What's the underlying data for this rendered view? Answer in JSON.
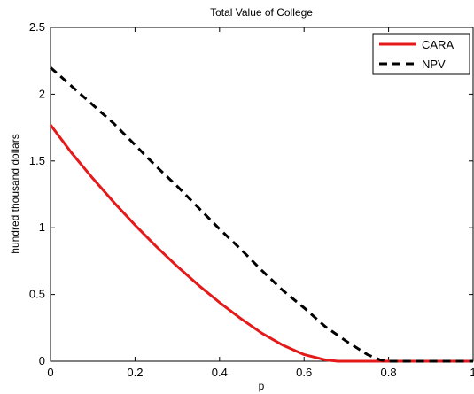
{
  "chart_data": {
    "type": "line",
    "title": "Total Value of College",
    "xlabel": "p",
    "ylabel": "hundred thousand dollars",
    "xlim": [
      0,
      1
    ],
    "ylim": [
      0,
      2.5
    ],
    "x_ticks": [
      "0",
      "0.2",
      "0.4",
      "0.6",
      "0.8",
      "1"
    ],
    "y_ticks": [
      "0",
      "0.5",
      "1",
      "1.5",
      "2",
      "2.5"
    ],
    "grid": false,
    "legend_position": "top-right",
    "series": [
      {
        "name": "CARA",
        "color": "#e41a1a",
        "line_style": "solid",
        "x": [
          0,
          0.05,
          0.1,
          0.15,
          0.2,
          0.25,
          0.3,
          0.35,
          0.4,
          0.45,
          0.5,
          0.55,
          0.6,
          0.65,
          0.68,
          0.7,
          0.75,
          0.8,
          0.85,
          0.9,
          0.95,
          1.0
        ],
        "y": [
          1.77,
          1.56,
          1.37,
          1.19,
          1.02,
          0.86,
          0.71,
          0.57,
          0.44,
          0.32,
          0.21,
          0.12,
          0.05,
          0.01,
          0.0,
          0.0,
          0.0,
          0.0,
          0.0,
          0.0,
          0.0,
          0.0
        ]
      },
      {
        "name": "NPV",
        "color": "#000000",
        "line_style": "dashed",
        "x": [
          0,
          0.05,
          0.1,
          0.15,
          0.2,
          0.25,
          0.3,
          0.35,
          0.4,
          0.45,
          0.5,
          0.55,
          0.6,
          0.65,
          0.7,
          0.75,
          0.78,
          0.8,
          0.85,
          0.9,
          0.95,
          1.0
        ],
        "y": [
          2.2,
          2.06,
          1.92,
          1.78,
          1.62,
          1.46,
          1.31,
          1.15,
          0.99,
          0.84,
          0.68,
          0.53,
          0.4,
          0.26,
          0.15,
          0.05,
          0.01,
          0.0,
          0.0,
          0.0,
          0.0,
          0.0
        ]
      }
    ]
  }
}
